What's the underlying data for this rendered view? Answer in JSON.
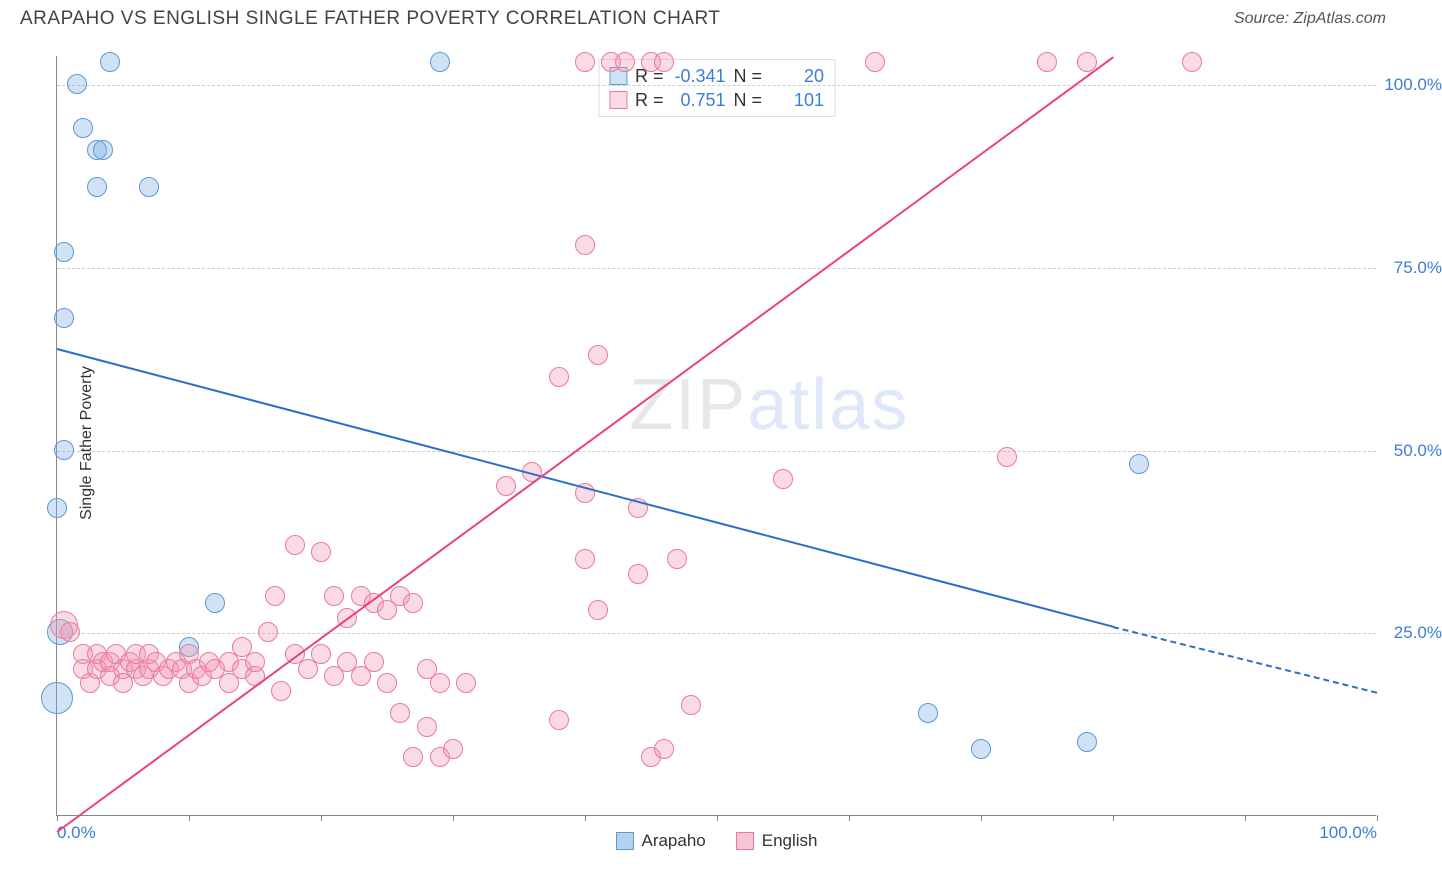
{
  "header": {
    "title": "ARAPAHO VS ENGLISH SINGLE FATHER POVERTY CORRELATION CHART",
    "source": "Source: ZipAtlas.com"
  },
  "chart": {
    "type": "scatter",
    "ylabel": "Single Father Poverty",
    "ylabel_fontsize": 16,
    "xlim": [
      0,
      100
    ],
    "ylim": [
      0,
      104
    ],
    "xticks": [
      0,
      10,
      20,
      30,
      40,
      50,
      60,
      70,
      80,
      90,
      100
    ],
    "xtick_labels": {
      "0": "0.0%",
      "100": "100.0%"
    },
    "yticks": [
      25,
      50,
      75,
      100
    ],
    "ytick_labels": {
      "25": "25.0%",
      "50": "50.0%",
      "75": "75.0%",
      "100": "100.0%"
    },
    "grid_color": "#d0d0d0",
    "axis_color": "#888888",
    "tick_label_color": "#3b7dd8",
    "tick_label_fontsize": 17,
    "background_color": "#ffffff",
    "watermark": {
      "text_a": "ZIP",
      "text_b": "atlas",
      "color_a": "rgba(120,120,120,0.18)",
      "color_b": "rgba(70,130,220,0.18)",
      "fontsize": 72
    }
  },
  "series": [
    {
      "name": "Arapaho",
      "color_fill": "rgba(122,172,230,0.35)",
      "color_stroke": "#5a9bd8",
      "marker_radius": 10,
      "legend_R": "-0.341",
      "legend_N": "20",
      "trend": {
        "x1": 0,
        "y1": 64,
        "x2": 80,
        "y2": 26,
        "color": "#2a6fc9",
        "width": 2,
        "style": "solid",
        "dash_ext": {
          "x1": 80,
          "y1": 26,
          "x2": 100,
          "y2": 17,
          "style": "dashed"
        }
      },
      "points": [
        {
          "x": 0,
          "y": 42
        },
        {
          "x": 0.5,
          "y": 50
        },
        {
          "x": 0.5,
          "y": 68
        },
        {
          "x": 0.5,
          "y": 77
        },
        {
          "x": 2,
          "y": 94
        },
        {
          "x": 1.5,
          "y": 100
        },
        {
          "x": 3,
          "y": 91
        },
        {
          "x": 3.5,
          "y": 91
        },
        {
          "x": 4,
          "y": 103
        },
        {
          "x": 3,
          "y": 86
        },
        {
          "x": 7,
          "y": 86
        },
        {
          "x": 10,
          "y": 23
        },
        {
          "x": 12,
          "y": 29
        },
        {
          "x": 29,
          "y": 103
        },
        {
          "x": 66,
          "y": 14
        },
        {
          "x": 70,
          "y": 9
        },
        {
          "x": 78,
          "y": 10
        },
        {
          "x": 82,
          "y": 48
        }
      ],
      "big_points": [
        {
          "x": 0,
          "y": 16,
          "r": 16
        },
        {
          "x": 0.2,
          "y": 25,
          "r": 13
        }
      ]
    },
    {
      "name": "English",
      "color_fill": "rgba(240,150,175,0.35)",
      "color_stroke": "#e87ba0",
      "marker_radius": 10,
      "legend_R": "0.751",
      "legend_N": "101",
      "trend": {
        "x1": 0,
        "y1": -2,
        "x2": 80,
        "y2": 104,
        "color": "#e8447a",
        "width": 2,
        "style": "solid"
      },
      "points": [
        {
          "x": 1,
          "y": 25
        },
        {
          "x": 2,
          "y": 22
        },
        {
          "x": 2,
          "y": 20
        },
        {
          "x": 2.5,
          "y": 18
        },
        {
          "x": 3,
          "y": 20
        },
        {
          "x": 3,
          "y": 22
        },
        {
          "x": 3.5,
          "y": 21
        },
        {
          "x": 4,
          "y": 19
        },
        {
          "x": 4,
          "y": 21
        },
        {
          "x": 4.5,
          "y": 22
        },
        {
          "x": 5,
          "y": 20
        },
        {
          "x": 5,
          "y": 18
        },
        {
          "x": 5.5,
          "y": 21
        },
        {
          "x": 6,
          "y": 20
        },
        {
          "x": 6,
          "y": 22
        },
        {
          "x": 6.5,
          "y": 19
        },
        {
          "x": 7,
          "y": 20
        },
        {
          "x": 7,
          "y": 22
        },
        {
          "x": 7.5,
          "y": 21
        },
        {
          "x": 8,
          "y": 19
        },
        {
          "x": 8.5,
          "y": 20
        },
        {
          "x": 9,
          "y": 21
        },
        {
          "x": 9.5,
          "y": 20
        },
        {
          "x": 10,
          "y": 22
        },
        {
          "x": 10,
          "y": 18
        },
        {
          "x": 10.5,
          "y": 20
        },
        {
          "x": 11,
          "y": 19
        },
        {
          "x": 11.5,
          "y": 21
        },
        {
          "x": 12,
          "y": 20
        },
        {
          "x": 13,
          "y": 18
        },
        {
          "x": 13,
          "y": 21
        },
        {
          "x": 14,
          "y": 20
        },
        {
          "x": 14,
          "y": 23
        },
        {
          "x": 15,
          "y": 19
        },
        {
          "x": 15,
          "y": 21
        },
        {
          "x": 16,
          "y": 25
        },
        {
          "x": 16.5,
          "y": 30
        },
        {
          "x": 17,
          "y": 17
        },
        {
          "x": 18,
          "y": 22
        },
        {
          "x": 18,
          "y": 37
        },
        {
          "x": 19,
          "y": 20
        },
        {
          "x": 20,
          "y": 22
        },
        {
          "x": 20,
          "y": 36
        },
        {
          "x": 21,
          "y": 19
        },
        {
          "x": 21,
          "y": 30
        },
        {
          "x": 22,
          "y": 21
        },
        {
          "x": 22,
          "y": 27
        },
        {
          "x": 23,
          "y": 30
        },
        {
          "x": 23,
          "y": 19
        },
        {
          "x": 24,
          "y": 29
        },
        {
          "x": 24,
          "y": 21
        },
        {
          "x": 25,
          "y": 18
        },
        {
          "x": 25,
          "y": 28
        },
        {
          "x": 26,
          "y": 30
        },
        {
          "x": 26,
          "y": 14
        },
        {
          "x": 27,
          "y": 29
        },
        {
          "x": 27,
          "y": 8
        },
        {
          "x": 28,
          "y": 12
        },
        {
          "x": 28,
          "y": 20
        },
        {
          "x": 29,
          "y": 8
        },
        {
          "x": 29,
          "y": 18
        },
        {
          "x": 30,
          "y": 9
        },
        {
          "x": 31,
          "y": 18
        },
        {
          "x": 34,
          "y": 45
        },
        {
          "x": 36,
          "y": 47
        },
        {
          "x": 38,
          "y": 60
        },
        {
          "x": 38,
          "y": 13
        },
        {
          "x": 40,
          "y": 78
        },
        {
          "x": 40,
          "y": 44
        },
        {
          "x": 40,
          "y": 35
        },
        {
          "x": 41,
          "y": 63
        },
        {
          "x": 41,
          "y": 28
        },
        {
          "x": 42,
          "y": 103
        },
        {
          "x": 43,
          "y": 103
        },
        {
          "x": 40,
          "y": 103
        },
        {
          "x": 44,
          "y": 42
        },
        {
          "x": 44,
          "y": 33
        },
        {
          "x": 45,
          "y": 103
        },
        {
          "x": 46,
          "y": 103
        },
        {
          "x": 47,
          "y": 35
        },
        {
          "x": 48,
          "y": 15
        },
        {
          "x": 45,
          "y": 8
        },
        {
          "x": 46,
          "y": 9
        },
        {
          "x": 55,
          "y": 46
        },
        {
          "x": 62,
          "y": 103
        },
        {
          "x": 72,
          "y": 49
        },
        {
          "x": 75,
          "y": 103
        },
        {
          "x": 78,
          "y": 103
        },
        {
          "x": 86,
          "y": 103
        }
      ],
      "big_points": [
        {
          "x": 0.5,
          "y": 26,
          "r": 14
        }
      ]
    }
  ],
  "stats_legend": {
    "label_R": "R =",
    "label_N": "N ="
  },
  "bottom_legend": {
    "items": [
      {
        "label": "Arapaho",
        "fill": "rgba(122,172,230,0.55)",
        "stroke": "#5a9bd8"
      },
      {
        "label": "English",
        "fill": "rgba(240,150,175,0.55)",
        "stroke": "#e87ba0"
      }
    ]
  }
}
